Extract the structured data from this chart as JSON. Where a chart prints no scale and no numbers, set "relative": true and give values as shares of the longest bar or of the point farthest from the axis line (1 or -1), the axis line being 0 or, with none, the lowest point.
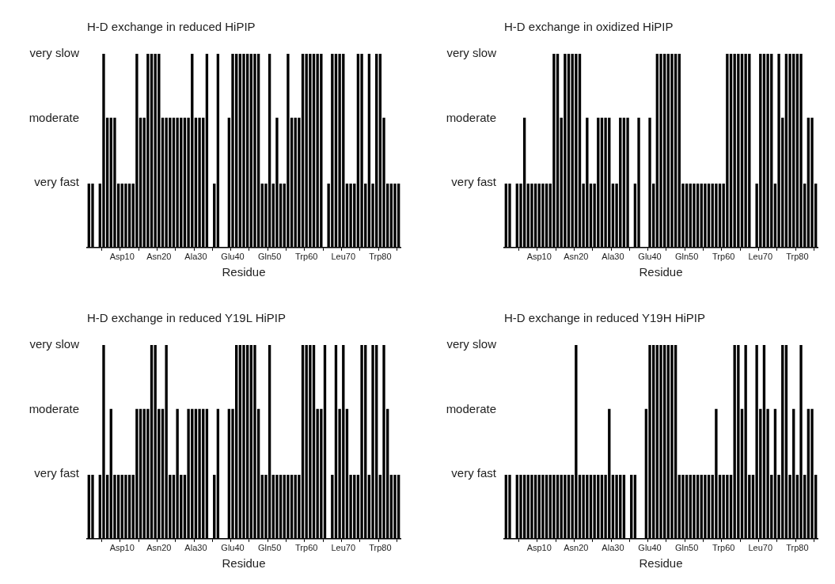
{
  "chart_data": [
    {
      "type": "bar",
      "title": "H-D exchange in reduced HiPIP",
      "xlabel": "Residue",
      "color": "#000000",
      "relative": true,
      "annotations": [
        "very fast",
        "moderate",
        "very slow"
      ],
      "categories": [
        null,
        null,
        null,
        null,
        null,
        null,
        null,
        null,
        null,
        "Asp10",
        null,
        null,
        null,
        null,
        null,
        null,
        null,
        null,
        null,
        "Asn20",
        null,
        null,
        null,
        null,
        null,
        null,
        null,
        null,
        null,
        "Ala30",
        null,
        null,
        null,
        null,
        null,
        null,
        null,
        null,
        null,
        "Glu40",
        null,
        null,
        null,
        null,
        null,
        null,
        null,
        null,
        null,
        "Gln50",
        null,
        null,
        null,
        null,
        null,
        null,
        null,
        null,
        null,
        "Trp60",
        null,
        null,
        null,
        null,
        null,
        null,
        null,
        null,
        null,
        "Leu70",
        null,
        null,
        null,
        null,
        null,
        null,
        null,
        null,
        null,
        "Trp80",
        null,
        null,
        null,
        null,
        null
      ],
      "values": [
        0.33,
        0.33,
        null,
        0.33,
        1,
        0.67,
        0.67,
        0.67,
        0.33,
        0.33,
        0.33,
        0.33,
        0.33,
        1,
        0.67,
        0.67,
        1,
        1,
        1,
        1,
        0.67,
        0.67,
        0.67,
        0.67,
        0.67,
        0.67,
        0.67,
        0.67,
        1,
        0.67,
        0.67,
        0.67,
        1,
        null,
        0.33,
        1,
        null,
        null,
        0.67,
        1,
        1,
        1,
        1,
        1,
        1,
        1,
        1,
        0.33,
        0.33,
        1,
        0.33,
        0.67,
        0.33,
        0.33,
        1,
        0.67,
        0.67,
        0.67,
        1,
        1,
        1,
        1,
        1,
        1,
        null,
        0.33,
        1,
        1,
        1,
        1,
        0.33,
        0.33,
        0.33,
        1,
        1,
        0.33,
        1,
        0.33,
        1,
        1,
        0.67,
        0.33,
        0.33,
        0.33,
        0.33
      ]
    },
    {
      "type": "bar",
      "title": "H-D exchange in oxidized HiPIP",
      "xlabel": "Residue",
      "color": "#000000",
      "relative": true,
      "annotations": [
        "very fast",
        "moderate",
        "very slow"
      ],
      "categories": [
        null,
        null,
        null,
        null,
        null,
        null,
        null,
        null,
        null,
        "Asp10",
        null,
        null,
        null,
        null,
        null,
        null,
        null,
        null,
        null,
        "Asn20",
        null,
        null,
        null,
        null,
        null,
        null,
        null,
        null,
        null,
        "Ala30",
        null,
        null,
        null,
        null,
        null,
        null,
        null,
        null,
        null,
        "Glu40",
        null,
        null,
        null,
        null,
        null,
        null,
        null,
        null,
        null,
        "Gln50",
        null,
        null,
        null,
        null,
        null,
        null,
        null,
        null,
        null,
        "Trp60",
        null,
        null,
        null,
        null,
        null,
        null,
        null,
        null,
        null,
        "Leu70",
        null,
        null,
        null,
        null,
        null,
        null,
        null,
        null,
        null,
        "Trp80",
        null,
        null,
        null,
        null,
        null
      ],
      "values": [
        0.33,
        0.33,
        null,
        0.33,
        0.33,
        0.67,
        0.33,
        0.33,
        0.33,
        0.33,
        0.33,
        0.33,
        0.33,
        1,
        1,
        0.67,
        1,
        1,
        1,
        1,
        1,
        0.33,
        0.67,
        0.33,
        0.33,
        0.67,
        0.67,
        0.67,
        0.67,
        0.33,
        0.33,
        0.67,
        0.67,
        0.67,
        null,
        0.33,
        0.67,
        null,
        null,
        0.67,
        0.33,
        1,
        1,
        1,
        1,
        1,
        1,
        1,
        0.33,
        0.33,
        0.33,
        0.33,
        0.33,
        0.33,
        0.33,
        0.33,
        0.33,
        0.33,
        0.33,
        0.33,
        1,
        1,
        1,
        1,
        1,
        1,
        1,
        null,
        0.33,
        1,
        1,
        1,
        1,
        0.33,
        1,
        0.67,
        1,
        1,
        1,
        1,
        1,
        0.33,
        0.67,
        0.67,
        0.33
      ]
    },
    {
      "type": "bar",
      "title": "H-D exchange in reduced Y19L HiPIP",
      "xlabel": "Residue",
      "color": "#000000",
      "relative": true,
      "annotations": [
        "very fast",
        "moderate",
        "very slow"
      ],
      "categories": [
        null,
        null,
        null,
        null,
        null,
        null,
        null,
        null,
        null,
        "Asp10",
        null,
        null,
        null,
        null,
        null,
        null,
        null,
        null,
        null,
        "Asn20",
        null,
        null,
        null,
        null,
        null,
        null,
        null,
        null,
        null,
        "Ala30",
        null,
        null,
        null,
        null,
        null,
        null,
        null,
        null,
        null,
        "Glu40",
        null,
        null,
        null,
        null,
        null,
        null,
        null,
        null,
        null,
        "Gln50",
        null,
        null,
        null,
        null,
        null,
        null,
        null,
        null,
        null,
        "Trp60",
        null,
        null,
        null,
        null,
        null,
        null,
        null,
        null,
        null,
        "Leu70",
        null,
        null,
        null,
        null,
        null,
        null,
        null,
        null,
        null,
        "Trp80",
        null,
        null,
        null,
        null,
        null
      ],
      "values": [
        0.33,
        0.33,
        null,
        0.33,
        1,
        0.33,
        0.67,
        0.33,
        0.33,
        0.33,
        0.33,
        0.33,
        0.33,
        0.67,
        0.67,
        0.67,
        0.67,
        1,
        1,
        0.67,
        0.67,
        1,
        0.33,
        0.33,
        0.67,
        0.33,
        0.33,
        0.67,
        0.67,
        0.67,
        0.67,
        0.67,
        0.67,
        null,
        0.33,
        0.67,
        null,
        null,
        0.67,
        0.67,
        1,
        1,
        1,
        1,
        1,
        1,
        0.67,
        0.33,
        0.33,
        1,
        0.33,
        0.33,
        0.33,
        0.33,
        0.33,
        0.33,
        0.33,
        0.33,
        1,
        1,
        1,
        1,
        0.67,
        0.67,
        1,
        null,
        0.33,
        1,
        0.67,
        1,
        0.67,
        0.33,
        0.33,
        0.33,
        1,
        1,
        0.33,
        1,
        1,
        0.33,
        1,
        0.67,
        0.33,
        0.33,
        0.33
      ]
    },
    {
      "type": "bar",
      "title": "H-D exchange in reduced Y19H HiPIP",
      "xlabel": "Residue",
      "color": "#000000",
      "relative": true,
      "annotations": [
        "very fast",
        "moderate",
        "very slow"
      ],
      "categories": [
        null,
        null,
        null,
        null,
        null,
        null,
        null,
        null,
        null,
        "Asp10",
        null,
        null,
        null,
        null,
        null,
        null,
        null,
        null,
        null,
        "Asn20",
        null,
        null,
        null,
        null,
        null,
        null,
        null,
        null,
        null,
        "Ala30",
        null,
        null,
        null,
        null,
        null,
        null,
        null,
        null,
        null,
        "Glu40",
        null,
        null,
        null,
        null,
        null,
        null,
        null,
        null,
        null,
        "Gln50",
        null,
        null,
        null,
        null,
        null,
        null,
        null,
        null,
        null,
        "Trp60",
        null,
        null,
        null,
        null,
        null,
        null,
        null,
        null,
        null,
        "Leu70",
        null,
        null,
        null,
        null,
        null,
        null,
        null,
        null,
        null,
        "Trp80",
        null,
        null,
        null,
        null,
        null
      ],
      "values": [
        0.33,
        0.33,
        null,
        0.33,
        0.33,
        0.33,
        0.33,
        0.33,
        0.33,
        0.33,
        0.33,
        0.33,
        0.33,
        0.33,
        0.33,
        0.33,
        0.33,
        0.33,
        0.33,
        1,
        0.33,
        0.33,
        0.33,
        0.33,
        0.33,
        0.33,
        0.33,
        0.33,
        0.67,
        0.33,
        0.33,
        0.33,
        0.33,
        null,
        0.33,
        0.33,
        null,
        null,
        0.67,
        1,
        1,
        1,
        1,
        1,
        1,
        1,
        1,
        0.33,
        0.33,
        0.33,
        0.33,
        0.33,
        0.33,
        0.33,
        0.33,
        0.33,
        0.33,
        0.67,
        0.33,
        0.33,
        0.33,
        0.33,
        1,
        1,
        0.67,
        1,
        0.33,
        0.33,
        1,
        0.67,
        1,
        0.67,
        0.33,
        0.67,
        0.33,
        1,
        1,
        0.33,
        0.67,
        0.33,
        1,
        0.33,
        0.67,
        0.67,
        0.33
      ]
    }
  ]
}
